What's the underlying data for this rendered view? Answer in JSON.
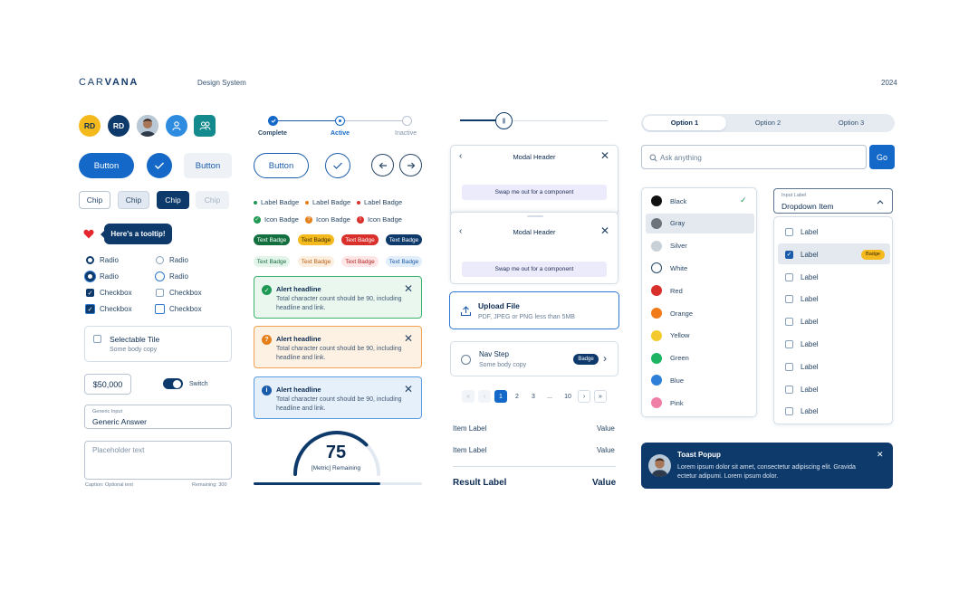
{
  "header": {
    "logo_a": "CAR",
    "logo_b": "VANA",
    "title": "Design System",
    "year": "2024"
  },
  "avatars": {
    "initials_1": "RD",
    "initials_2": "RD"
  },
  "buttons": {
    "primary": "Button",
    "ghost": "Button",
    "outline": "Button"
  },
  "chips": [
    "Chip",
    "Chip",
    "Chip",
    "Chip"
  ],
  "tooltip": "Here's a tooltip!",
  "controls": {
    "radio_1": "Radio",
    "radio_2": "Radio",
    "radio_3": "Radio",
    "radio_4": "Radio",
    "checkbox_1": "Checkbox",
    "checkbox_2": "Checkbox",
    "checkbox_3": "Checkbox",
    "checkbox_4": "Checkbox"
  },
  "tile": {
    "title": "Selectable Tile",
    "body": "Some body copy"
  },
  "amount": "$50,000",
  "switch_label": "Switch",
  "generic_input": {
    "label": "Generic Input",
    "value": "Generic Answer"
  },
  "textarea": {
    "placeholder": "Placeholder text",
    "caption": "Caption: Optional text",
    "remaining": "Remaining: 300"
  },
  "stepper": {
    "complete": "Complete",
    "active": "Active",
    "inactive": "Inactive"
  },
  "badges": {
    "label": "Label Badge",
    "icon": "Icon Badge",
    "text": "Text Badge"
  },
  "alerts": [
    {
      "headline": "Alert headline",
      "body": "Total character count should be 90, including headline and link."
    },
    {
      "headline": "Alert headline",
      "body": "Total character count should be 90, including headline and link."
    },
    {
      "headline": "Alert headline",
      "body": "Total character count should be 90, including headline and link."
    }
  ],
  "gauge": {
    "value": "75",
    "label": "[Metric] Remaining",
    "fraction": 0.75
  },
  "progress": {
    "fraction": 0.75
  },
  "slider": {
    "fraction": 0.3
  },
  "modal": {
    "header": "Modal Header",
    "slot": "Swap me out for a component"
  },
  "upload": {
    "title": "Upload File",
    "body": "PDF, JPEG or PNG less than 5MB"
  },
  "nav_step": {
    "title": "Nav Step",
    "body": "Some body copy",
    "badge": "Badge"
  },
  "pagination": [
    "1",
    "2",
    "3",
    "...",
    "10"
  ],
  "summary": {
    "item_label": "Item Label",
    "value": "Value",
    "result_label": "Result Label",
    "result_value": "Value"
  },
  "segmented": [
    "Option 1",
    "Option 2",
    "Option 3"
  ],
  "search": {
    "placeholder": "Ask anything",
    "go": "Go"
  },
  "colors": [
    {
      "name": "Black",
      "hex": "#111111"
    },
    {
      "name": "Gray",
      "hex": "#6e747c"
    },
    {
      "name": "Silver",
      "hex": "#c8d0d8"
    },
    {
      "name": "White",
      "hex": "#ffffff"
    },
    {
      "name": "Red",
      "hex": "#d9302c"
    },
    {
      "name": "Orange",
      "hex": "#f07a1a"
    },
    {
      "name": "Yellow",
      "hex": "#f4c92e"
    },
    {
      "name": "Green",
      "hex": "#1fb463"
    },
    {
      "name": "Blue",
      "hex": "#2d7fd8"
    },
    {
      "name": "Pink",
      "hex": "#ef7fa6"
    }
  ],
  "dropdown": {
    "label": "Input Label",
    "value": "Dropdown Item",
    "item": "Label",
    "badge": "Badge"
  },
  "toast": {
    "title": "Toast Popup",
    "body": "Lorem ipsum dolor sit amet, consectetur adipiscing elit. Gravida ectetur adipumi. Lorem ipsum dolor."
  },
  "theme": {
    "navy": "#0e3a6b",
    "primary": "#1469c8",
    "teal": "#128a8e",
    "gold": "#f4b91c"
  }
}
